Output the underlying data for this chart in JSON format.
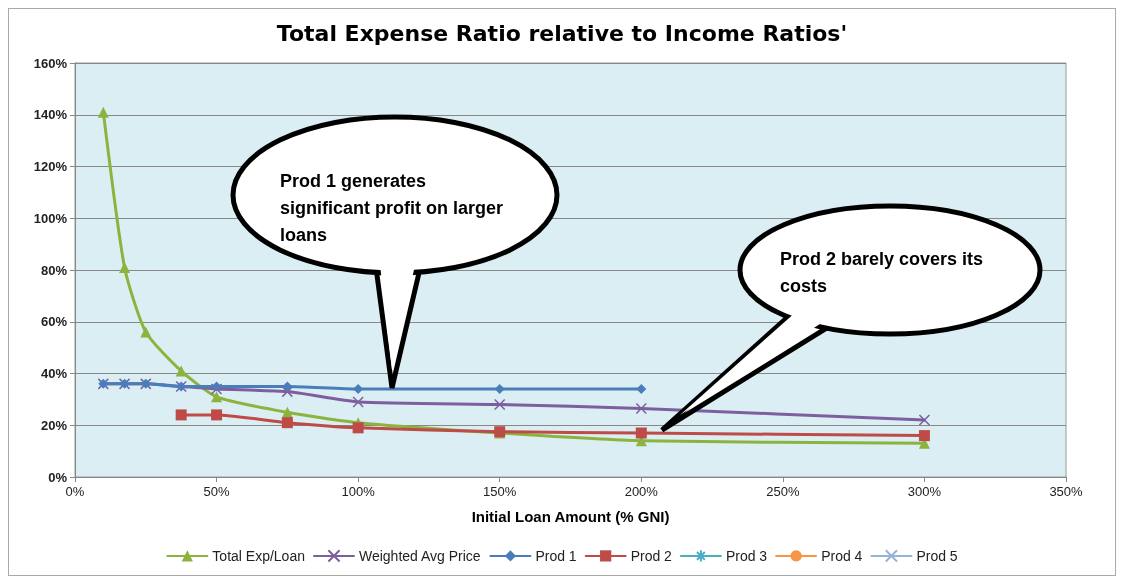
{
  "chart_data": {
    "type": "line",
    "title": "Total Expense Ratio relative to Income Ratios'",
    "xlabel": "Initial Loan Amount (% GNI)",
    "x": [
      10,
      17.5,
      25,
      37.5,
      50,
      75,
      100,
      150,
      200,
      300
    ],
    "series": [
      {
        "name": "Total Exp/Loan",
        "color": "#8cb33e",
        "marker": "triangle",
        "values": [
          141,
          81,
          56,
          41,
          31,
          25,
          21,
          17,
          14,
          13
        ]
      },
      {
        "name": "Weighted Avg Price",
        "color": "#7d5fa0",
        "marker": "cross",
        "values": [
          36,
          36,
          36,
          35,
          34,
          33,
          29,
          28,
          26.5,
          22
        ]
      },
      {
        "name": "Prod 1",
        "color": "#4a7ebb",
        "marker": "diamond",
        "values": [
          36,
          36,
          36,
          35,
          35,
          35,
          34,
          34,
          34,
          null
        ]
      },
      {
        "name": "Prod 2",
        "color": "#be4b48",
        "marker": "square",
        "values": [
          null,
          null,
          null,
          24,
          24,
          21,
          19,
          17.5,
          17,
          16
        ]
      },
      {
        "name": "Prod 3",
        "color": "#4bacc6",
        "marker": "star",
        "values": [
          null,
          null,
          null,
          null,
          null,
          null,
          null,
          null,
          null,
          null
        ]
      },
      {
        "name": "Prod 4",
        "color": "#f79646",
        "marker": "circle",
        "values": [
          null,
          null,
          null,
          null,
          null,
          null,
          null,
          null,
          null,
          null
        ]
      },
      {
        "name": "Prod 5",
        "color": "#95b3d7",
        "marker": "cross",
        "values": [
          null,
          null,
          null,
          null,
          null,
          null,
          null,
          null,
          null,
          null
        ]
      }
    ],
    "xlim": [
      0,
      350
    ],
    "xticks": [
      {
        "value": 0,
        "label": "0%"
      },
      {
        "value": 50,
        "label": "50%"
      },
      {
        "value": 100,
        "label": "100%"
      },
      {
        "value": 150,
        "label": "150%"
      },
      {
        "value": 200,
        "label": "200%"
      },
      {
        "value": 250,
        "label": "250%"
      },
      {
        "value": 300,
        "label": "300%"
      },
      {
        "value": 350,
        "label": "350%"
      }
    ],
    "ylim": [
      0,
      160
    ],
    "yticks": [
      {
        "value": 0,
        "label": "0%"
      },
      {
        "value": 20,
        "label": "20%"
      },
      {
        "value": 40,
        "label": "40%"
      },
      {
        "value": 60,
        "label": "60%"
      },
      {
        "value": 80,
        "label": "80%"
      },
      {
        "value": 100,
        "label": "100%"
      },
      {
        "value": 120,
        "label": "120%"
      },
      {
        "value": 140,
        "label": "140%"
      },
      {
        "value": 160,
        "label": "160%"
      }
    ],
    "grid": "y",
    "legend": "bottom",
    "annotations": [
      "Prod 1 generates significant profit on larger loans",
      "Prod 2 barely covers its costs"
    ]
  }
}
